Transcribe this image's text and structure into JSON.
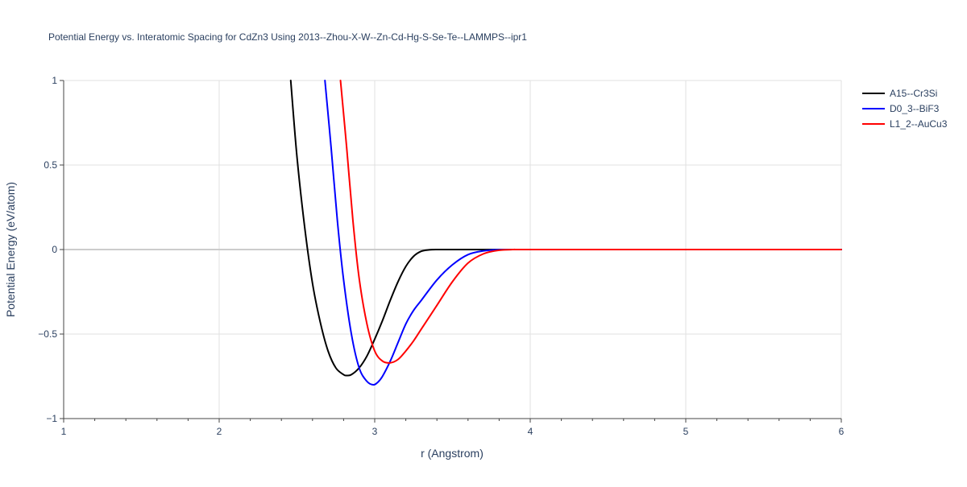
{
  "chart_data": {
    "type": "line",
    "title": "Potential Energy vs. Interatomic Spacing for CdZn3 Using 2013--Zhou-X-W--Zn-Cd-Hg-S-Se-Te--LAMMPS--ipr1",
    "xlabel": "r (Angstrom)",
    "ylabel": "Potential Energy (eV/atom)",
    "xlim": [
      1,
      6
    ],
    "ylim": [
      -1,
      1
    ],
    "x_ticks": [
      1,
      2,
      3,
      4,
      5,
      6
    ],
    "y_ticks": [
      -1,
      -0.5,
      0,
      0.5,
      1
    ],
    "x_tick_labels": [
      "1",
      "2",
      "3",
      "4",
      "5",
      "6"
    ],
    "y_tick_labels": [
      "−1",
      "−0.5",
      "0",
      "0.5",
      "1"
    ],
    "grid": true,
    "legend_position": "top-right",
    "series": [
      {
        "name": "A15--Cr3Si",
        "color": "#000000",
        "x": [
          2.46,
          2.5,
          2.55,
          2.6,
          2.65,
          2.7,
          2.75,
          2.8,
          2.82,
          2.85,
          2.9,
          2.95,
          3.0,
          3.05,
          3.1,
          3.15,
          3.2,
          3.25,
          3.3,
          3.35,
          3.4,
          3.5,
          3.6,
          3.8,
          4.0,
          5.0,
          6.0
        ],
        "y": [
          1.0,
          0.55,
          0.13,
          -0.2,
          -0.43,
          -0.6,
          -0.7,
          -0.74,
          -0.745,
          -0.74,
          -0.7,
          -0.63,
          -0.53,
          -0.42,
          -0.3,
          -0.19,
          -0.1,
          -0.04,
          -0.01,
          -0.002,
          0.0,
          0.0,
          0.0,
          0.0,
          0.0,
          0.0,
          0.0
        ]
      },
      {
        "name": "D0_3--BiF3",
        "color": "#0000ff",
        "x": [
          2.68,
          2.72,
          2.76,
          2.8,
          2.85,
          2.9,
          2.95,
          2.99,
          3.02,
          3.05,
          3.1,
          3.15,
          3.2,
          3.25,
          3.3,
          3.4,
          3.5,
          3.6,
          3.7,
          3.8,
          3.9,
          4.0,
          5.0,
          6.0
        ],
        "y": [
          1.0,
          0.6,
          0.17,
          -0.18,
          -0.5,
          -0.7,
          -0.78,
          -0.8,
          -0.785,
          -0.75,
          -0.66,
          -0.55,
          -0.44,
          -0.36,
          -0.3,
          -0.18,
          -0.09,
          -0.03,
          -0.008,
          -0.001,
          0.0,
          0.0,
          0.0,
          0.0
        ]
      },
      {
        "name": "L1_2--AuCu3",
        "color": "#ff0000",
        "x": [
          2.78,
          2.82,
          2.86,
          2.9,
          2.95,
          3.0,
          3.05,
          3.1,
          3.15,
          3.2,
          3.25,
          3.3,
          3.4,
          3.5,
          3.6,
          3.7,
          3.8,
          3.9,
          4.0,
          5.0,
          6.0
        ],
        "y": [
          1.0,
          0.6,
          0.17,
          -0.17,
          -0.44,
          -0.6,
          -0.66,
          -0.67,
          -0.65,
          -0.6,
          -0.54,
          -0.47,
          -0.33,
          -0.19,
          -0.08,
          -0.025,
          -0.004,
          0.0,
          0.0,
          0.0,
          0.0
        ]
      }
    ]
  }
}
